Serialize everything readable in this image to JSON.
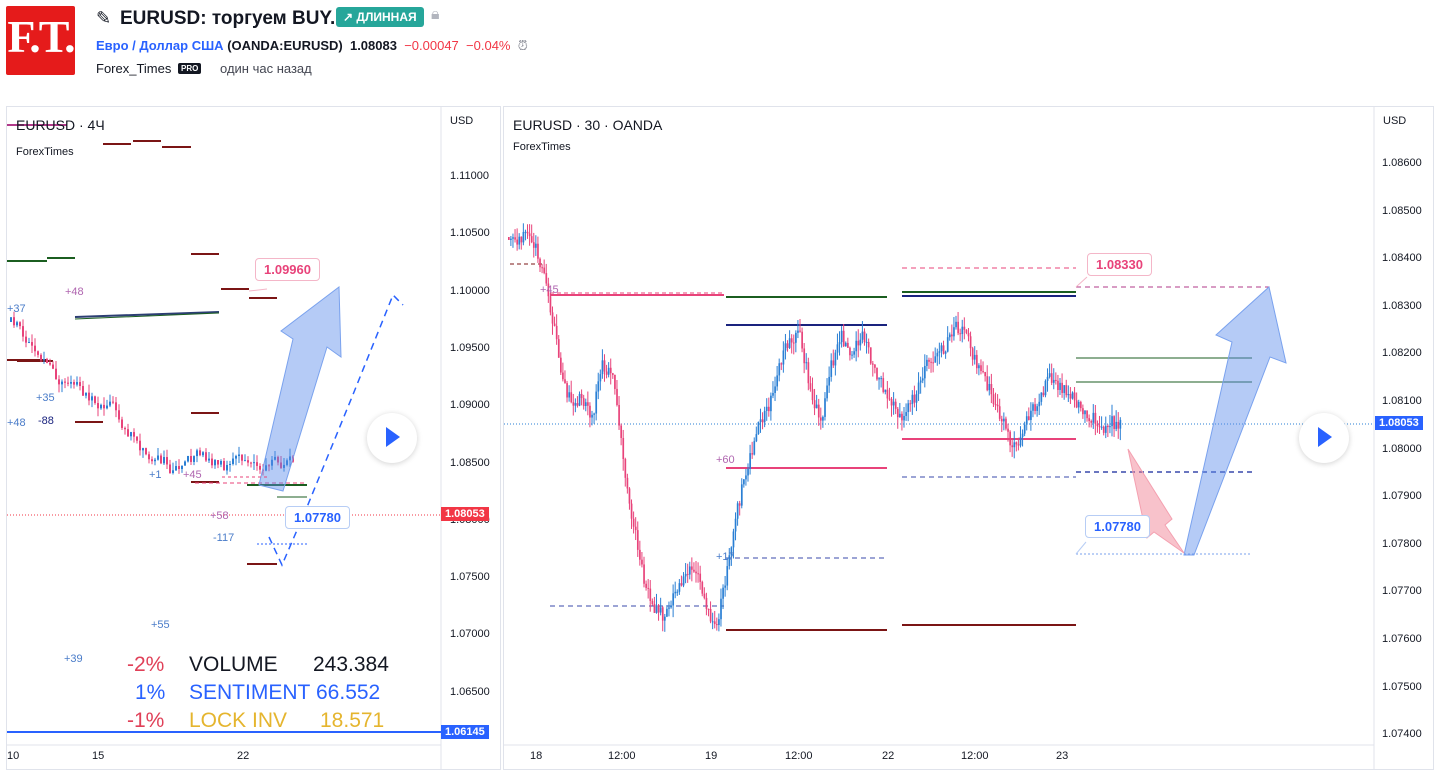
{
  "header": {
    "logo_text": "F.T.",
    "title": "EURUSD: торгуем BUY.",
    "badge": "↗ ДЛИННАЯ",
    "symbol_name": "Евро / Доллар США",
    "symbol_code": "(OANDA:EURUSD)",
    "price": "1.08083",
    "change": "−0.00047",
    "change_pct": "−0.04%",
    "author": "Forex_Times",
    "pro": "PRO",
    "time_ago": "один час назад"
  },
  "left_chart": {
    "title": "EURUSD · 4Ч",
    "source": "ForexTimes",
    "axis_unit": "USD",
    "y_ticks": [
      "1.11000",
      "1.10500",
      "1.10000",
      "1.09500",
      "1.09000",
      "1.08500",
      "1.08000",
      "1.07500",
      "1.07000",
      "1.06500"
    ],
    "x_ticks": [
      "10",
      "15",
      "22"
    ],
    "last_price": "1.08053",
    "low_tag": "1.06145",
    "target": "1.09960",
    "stop": "1.07780",
    "level_labels": [
      "+37",
      "+48",
      "+35",
      "+48",
      "-88",
      "+55",
      "+39",
      "+58",
      "+45",
      "-117",
      "+1"
    ],
    "stats": [
      {
        "pct": "-2%",
        "label": "VOLUME",
        "value": "243.384"
      },
      {
        "pct": "1%",
        "label": "SENTIMENT",
        "value": "66.552"
      },
      {
        "pct": "-1%",
        "label": "LOCK INV",
        "value": "18.571"
      }
    ]
  },
  "right_chart": {
    "title": "EURUSD · 30 · OANDA",
    "source": "ForexTimes",
    "axis_unit": "USD",
    "y_ticks": [
      "1.08600",
      "1.08500",
      "1.08400",
      "1.08300",
      "1.08200",
      "1.08100",
      "1.08000",
      "1.07900",
      "1.07800",
      "1.07700",
      "1.07600",
      "1.07500",
      "1.07400"
    ],
    "x_ticks": [
      "18",
      "12:00",
      "19",
      "12:00",
      "22",
      "12:00",
      "23"
    ],
    "last_price": "1.08053",
    "target": "1.08330",
    "stop": "1.07780",
    "level_labels": [
      "+45",
      "+60",
      "+17"
    ]
  },
  "colors": {
    "accent": "#2962ff",
    "red": "#f23645",
    "green": "#26a69a",
    "bull": "#2a7fd4",
    "bear": "#e8437a"
  }
}
